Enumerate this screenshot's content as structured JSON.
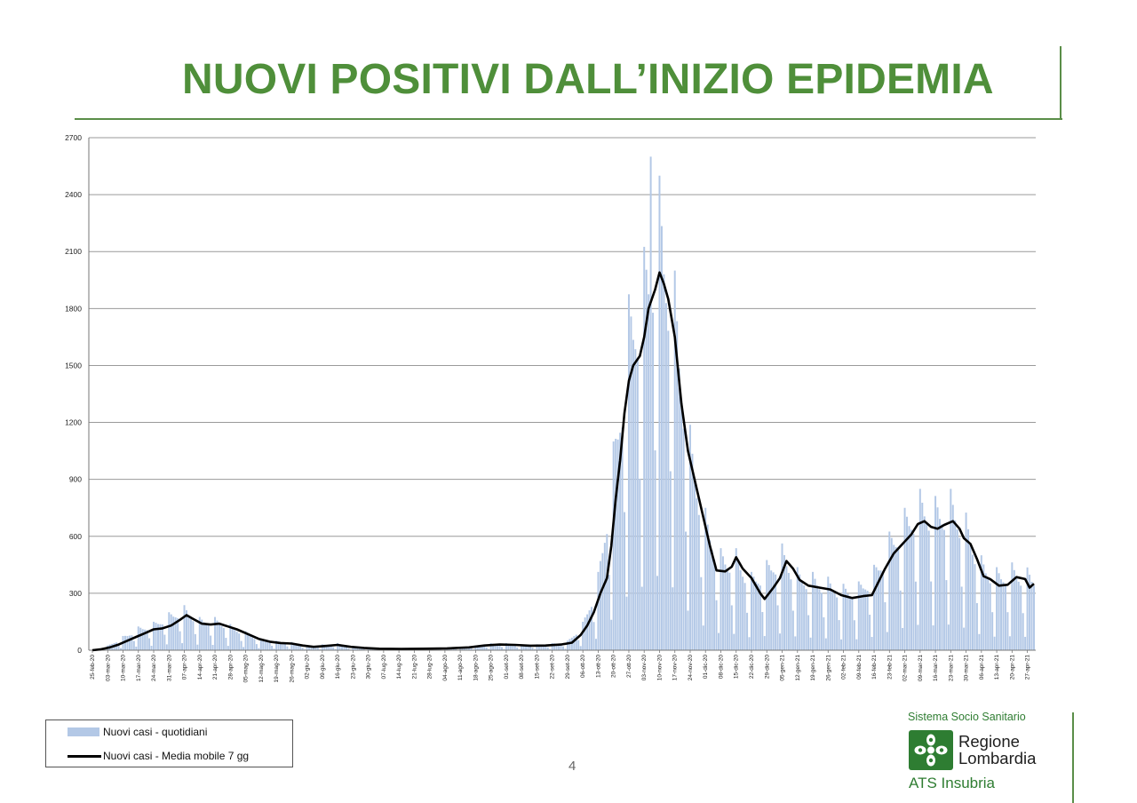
{
  "page": {
    "title": "NUOVI POSITIVI DALL’INIZIO EPIDEMIA",
    "page_number": "4"
  },
  "legend": {
    "bars_label": "Nuovi casi - quotidiani",
    "line_label": "Nuovi casi - Media mobile 7 gg"
  },
  "logo": {
    "line1": "Sistema Socio Sanitario",
    "region_line1": "Regione",
    "region_line2": "Lombardia",
    "agency": "ATS Insubria"
  },
  "colors": {
    "title": "#4f8f3a",
    "bars": "#b3c8e6",
    "line": "#000000",
    "grid": "#9a9a9a"
  },
  "chart_data": {
    "type": "bar",
    "title": "",
    "xlabel": "",
    "ylabel": "",
    "ylim": [
      0,
      2700
    ],
    "yticks": [
      0,
      300,
      600,
      900,
      1200,
      1500,
      1800,
      2100,
      2400,
      2700
    ],
    "grid": true,
    "legend_position": "bottom-left",
    "x_start": "2020-02-25",
    "x_end": "2021-04-30",
    "x_tick_labels": [
      "25-feb-20",
      "03-mar-20",
      "10-mar-20",
      "17-mar-20",
      "24-mar-20",
      "31-mar-20",
      "07-apr-20",
      "14-apr-20",
      "21-apr-20",
      "28-apr-20",
      "05-mag-20",
      "12-mag-20",
      "19-mag-20",
      "26-mag-20",
      "02-giu-20",
      "09-giu-20",
      "16-giu-20",
      "23-giu-20",
      "30-giu-20",
      "07-lug-20",
      "14-lug-20",
      "21-lug-20",
      "28-lug-20",
      "04-ago-20",
      "11-ago-20",
      "18-ago-20",
      "25-ago-20",
      "01-set-20",
      "08-set-20",
      "15-set-20",
      "22-set-20",
      "29-set-20",
      "06-ott-20",
      "13-ott-20",
      "20-ott-20",
      "27-ott-20",
      "03-nov-20",
      "10-nov-20",
      "17-nov-20",
      "24-nov-20",
      "01-dic-20",
      "08-dic-20",
      "15-dic-20",
      "22-dic-20",
      "29-dic-20",
      "05-gen-21",
      "12-gen-21",
      "19-gen-21",
      "26-gen-21",
      "02-feb-21",
      "09-feb-21",
      "16-feb-21",
      "23-feb-21",
      "02-mar-21",
      "09-mar-21",
      "16-mar-21",
      "23-mar-21",
      "30-mar-21",
      "06-apr-21",
      "13-apr-21",
      "20-apr-21",
      "27-apr-21"
    ],
    "series": [
      {
        "name": "Nuovi casi - quotidiani",
        "type": "bar",
        "weekly_keypoints": [
          {
            "x": "2020-02-25",
            "y": 0
          },
          {
            "x": "2020-03-03",
            "y": 20
          },
          {
            "x": "2020-03-10",
            "y": 60
          },
          {
            "x": "2020-03-17",
            "y": 100
          },
          {
            "x": "2020-03-24",
            "y": 120
          },
          {
            "x": "2020-03-31",
            "y": 160
          },
          {
            "x": "2020-04-07",
            "y": 190
          },
          {
            "x": "2020-04-14",
            "y": 140
          },
          {
            "x": "2020-04-21",
            "y": 140
          },
          {
            "x": "2020-04-28",
            "y": 110
          },
          {
            "x": "2020-05-05",
            "y": 80
          },
          {
            "x": "2020-05-12",
            "y": 50
          },
          {
            "x": "2020-05-19",
            "y": 40
          },
          {
            "x": "2020-05-26",
            "y": 35
          },
          {
            "x": "2020-06-02",
            "y": 20
          },
          {
            "x": "2020-06-09",
            "y": 25
          },
          {
            "x": "2020-06-16",
            "y": 30
          },
          {
            "x": "2020-06-23",
            "y": 15
          },
          {
            "x": "2020-06-30",
            "y": 10
          },
          {
            "x": "2020-07-07",
            "y": 8
          },
          {
            "x": "2020-07-14",
            "y": 8
          },
          {
            "x": "2020-07-21",
            "y": 8
          },
          {
            "x": "2020-07-28",
            "y": 8
          },
          {
            "x": "2020-08-04",
            "y": 10
          },
          {
            "x": "2020-08-11",
            "y": 10
          },
          {
            "x": "2020-08-18",
            "y": 20
          },
          {
            "x": "2020-08-25",
            "y": 30
          },
          {
            "x": "2020-09-01",
            "y": 30
          },
          {
            "x": "2020-09-08",
            "y": 25
          },
          {
            "x": "2020-09-15",
            "y": 25
          },
          {
            "x": "2020-09-22",
            "y": 30
          },
          {
            "x": "2020-09-29",
            "y": 40
          },
          {
            "x": "2020-10-06",
            "y": 120
          },
          {
            "x": "2020-10-13",
            "y": 330
          },
          {
            "x": "2020-10-20",
            "y": 880
          },
          {
            "x": "2020-10-27",
            "y": 1500
          },
          {
            "x": "2020-11-03",
            "y": 1700
          },
          {
            "x": "2020-11-10",
            "y": 2000
          },
          {
            "x": "2020-11-17",
            "y": 1600
          },
          {
            "x": "2020-11-24",
            "y": 950
          },
          {
            "x": "2020-12-01",
            "y": 600
          },
          {
            "x": "2020-12-08",
            "y": 430
          },
          {
            "x": "2020-12-15",
            "y": 430
          },
          {
            "x": "2020-12-22",
            "y": 330
          },
          {
            "x": "2020-12-29",
            "y": 380
          },
          {
            "x": "2021-01-05",
            "y": 450
          },
          {
            "x": "2021-01-12",
            "y": 350
          },
          {
            "x": "2021-01-19",
            "y": 330
          },
          {
            "x": "2021-01-26",
            "y": 310
          },
          {
            "x": "2021-02-02",
            "y": 280
          },
          {
            "x": "2021-02-09",
            "y": 290
          },
          {
            "x": "2021-02-16",
            "y": 360
          },
          {
            "x": "2021-02-23",
            "y": 500
          },
          {
            "x": "2021-03-02",
            "y": 600
          },
          {
            "x": "2021-03-09",
            "y": 680
          },
          {
            "x": "2021-03-16",
            "y": 650
          },
          {
            "x": "2021-03-23",
            "y": 680
          },
          {
            "x": "2021-03-30",
            "y": 580
          },
          {
            "x": "2021-04-06",
            "y": 400
          },
          {
            "x": "2021-04-13",
            "y": 350
          },
          {
            "x": "2021-04-20",
            "y": 370
          },
          {
            "x": "2021-04-30",
            "y": 340
          }
        ],
        "peak": {
          "x": "2020-11-06",
          "y": 2600
        }
      },
      {
        "name": "Nuovi casi - Media mobile 7 gg",
        "type": "line",
        "points": [
          {
            "x": "2020-02-25",
            "y": 0
          },
          {
            "x": "2020-02-29",
            "y": 5
          },
          {
            "x": "2020-03-04",
            "y": 15
          },
          {
            "x": "2020-03-08",
            "y": 30
          },
          {
            "x": "2020-03-12",
            "y": 50
          },
          {
            "x": "2020-03-16",
            "y": 70
          },
          {
            "x": "2020-03-20",
            "y": 90
          },
          {
            "x": "2020-03-24",
            "y": 110
          },
          {
            "x": "2020-03-28",
            "y": 115
          },
          {
            "x": "2020-04-01",
            "y": 130
          },
          {
            "x": "2020-04-05",
            "y": 160
          },
          {
            "x": "2020-04-08",
            "y": 185
          },
          {
            "x": "2020-04-11",
            "y": 165
          },
          {
            "x": "2020-04-15",
            "y": 140
          },
          {
            "x": "2020-04-19",
            "y": 135
          },
          {
            "x": "2020-04-23",
            "y": 140
          },
          {
            "x": "2020-04-27",
            "y": 125
          },
          {
            "x": "2020-05-01",
            "y": 110
          },
          {
            "x": "2020-05-06",
            "y": 85
          },
          {
            "x": "2020-05-11",
            "y": 60
          },
          {
            "x": "2020-05-16",
            "y": 45
          },
          {
            "x": "2020-05-21",
            "y": 38
          },
          {
            "x": "2020-05-26",
            "y": 35
          },
          {
            "x": "2020-05-31",
            "y": 25
          },
          {
            "x": "2020-06-05",
            "y": 18
          },
          {
            "x": "2020-06-10",
            "y": 22
          },
          {
            "x": "2020-06-16",
            "y": 28
          },
          {
            "x": "2020-06-22",
            "y": 18
          },
          {
            "x": "2020-06-28",
            "y": 12
          },
          {
            "x": "2020-07-05",
            "y": 8
          },
          {
            "x": "2020-07-15",
            "y": 7
          },
          {
            "x": "2020-07-25",
            "y": 8
          },
          {
            "x": "2020-08-05",
            "y": 10
          },
          {
            "x": "2020-08-15",
            "y": 15
          },
          {
            "x": "2020-08-22",
            "y": 25
          },
          {
            "x": "2020-08-29",
            "y": 30
          },
          {
            "x": "2020-09-05",
            "y": 28
          },
          {
            "x": "2020-09-12",
            "y": 24
          },
          {
            "x": "2020-09-19",
            "y": 25
          },
          {
            "x": "2020-09-26",
            "y": 30
          },
          {
            "x": "2020-10-01",
            "y": 40
          },
          {
            "x": "2020-10-05",
            "y": 80
          },
          {
            "x": "2020-10-08",
            "y": 130
          },
          {
            "x": "2020-10-11",
            "y": 200
          },
          {
            "x": "2020-10-14",
            "y": 300
          },
          {
            "x": "2020-10-17",
            "y": 380
          },
          {
            "x": "2020-10-19",
            "y": 550
          },
          {
            "x": "2020-10-21",
            "y": 800
          },
          {
            "x": "2020-10-23",
            "y": 1000
          },
          {
            "x": "2020-10-25",
            "y": 1250
          },
          {
            "x": "2020-10-27",
            "y": 1420
          },
          {
            "x": "2020-10-29",
            "y": 1500
          },
          {
            "x": "2020-11-01",
            "y": 1550
          },
          {
            "x": "2020-11-03",
            "y": 1650
          },
          {
            "x": "2020-11-05",
            "y": 1800
          },
          {
            "x": "2020-11-08",
            "y": 1900
          },
          {
            "x": "2020-11-10",
            "y": 1990
          },
          {
            "x": "2020-11-12",
            "y": 1930
          },
          {
            "x": "2020-11-14",
            "y": 1850
          },
          {
            "x": "2020-11-17",
            "y": 1650
          },
          {
            "x": "2020-11-20",
            "y": 1300
          },
          {
            "x": "2020-11-23",
            "y": 1050
          },
          {
            "x": "2020-11-26",
            "y": 900
          },
          {
            "x": "2020-11-30",
            "y": 700
          },
          {
            "x": "2020-12-03",
            "y": 550
          },
          {
            "x": "2020-12-06",
            "y": 420
          },
          {
            "x": "2020-12-10",
            "y": 415
          },
          {
            "x": "2020-12-13",
            "y": 440
          },
          {
            "x": "2020-12-15",
            "y": 490
          },
          {
            "x": "2020-12-18",
            "y": 430
          },
          {
            "x": "2020-12-22",
            "y": 380
          },
          {
            "x": "2020-12-26",
            "y": 300
          },
          {
            "x": "2020-12-28",
            "y": 270
          },
          {
            "x": "2021-01-01",
            "y": 330
          },
          {
            "x": "2021-01-04",
            "y": 380
          },
          {
            "x": "2021-01-07",
            "y": 470
          },
          {
            "x": "2021-01-10",
            "y": 430
          },
          {
            "x": "2021-01-13",
            "y": 370
          },
          {
            "x": "2021-01-17",
            "y": 340
          },
          {
            "x": "2021-01-22",
            "y": 330
          },
          {
            "x": "2021-01-27",
            "y": 320
          },
          {
            "x": "2021-02-01",
            "y": 290
          },
          {
            "x": "2021-02-06",
            "y": 275
          },
          {
            "x": "2021-02-11",
            "y": 285
          },
          {
            "x": "2021-02-15",
            "y": 290
          },
          {
            "x": "2021-02-18",
            "y": 360
          },
          {
            "x": "2021-02-21",
            "y": 430
          },
          {
            "x": "2021-02-25",
            "y": 510
          },
          {
            "x": "2021-03-01",
            "y": 560
          },
          {
            "x": "2021-03-05",
            "y": 610
          },
          {
            "x": "2021-03-08",
            "y": 665
          },
          {
            "x": "2021-03-11",
            "y": 680
          },
          {
            "x": "2021-03-14",
            "y": 650
          },
          {
            "x": "2021-03-17",
            "y": 640
          },
          {
            "x": "2021-03-20",
            "y": 660
          },
          {
            "x": "2021-03-24",
            "y": 680
          },
          {
            "x": "2021-03-27",
            "y": 640
          },
          {
            "x": "2021-03-29",
            "y": 590
          },
          {
            "x": "2021-04-01",
            "y": 560
          },
          {
            "x": "2021-04-04",
            "y": 480
          },
          {
            "x": "2021-04-07",
            "y": 390
          },
          {
            "x": "2021-04-10",
            "y": 375
          },
          {
            "x": "2021-04-14",
            "y": 340
          },
          {
            "x": "2021-04-18",
            "y": 345
          },
          {
            "x": "2021-04-22",
            "y": 385
          },
          {
            "x": "2021-04-26",
            "y": 375
          },
          {
            "x": "2021-04-28",
            "y": 330
          },
          {
            "x": "2021-04-30",
            "y": 350
          }
        ]
      }
    ]
  }
}
